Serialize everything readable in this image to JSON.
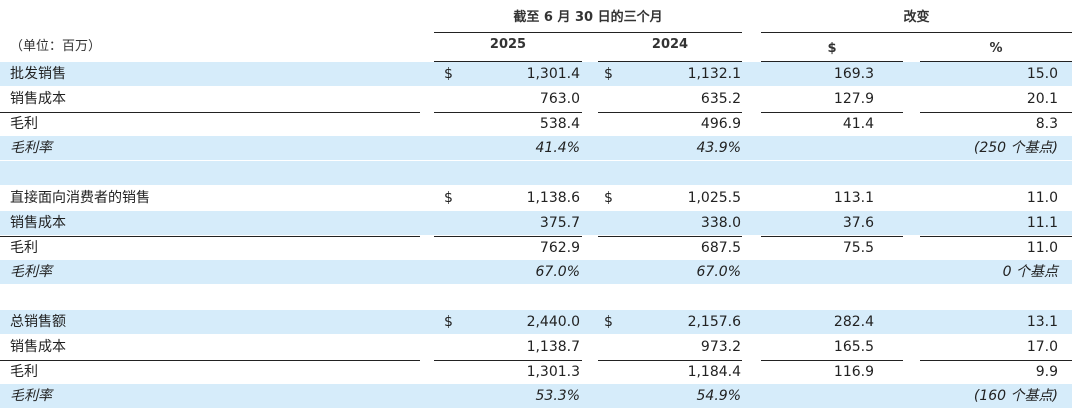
{
  "header": {
    "period": "截至 6 月 30 日的三个月",
    "change": "改变",
    "unit": "（单位：百万）",
    "col_2025": "2025",
    "col_2024": "2024",
    "col_dollar": "$",
    "col_percent": "%"
  },
  "rows": [
    {
      "label": "批发销售",
      "d1": "$",
      "v2025": "1,301.4",
      "d2": "$",
      "v2024": "1,132.1",
      "chg": "169.3",
      "pct": "15.0"
    },
    {
      "label": "销售成本",
      "d1": "",
      "v2025": "763.0",
      "d2": "",
      "v2024": "635.2",
      "chg": "127.9",
      "pct": "20.1"
    },
    {
      "label": "毛利",
      "d1": "",
      "v2025": "538.4",
      "d2": "",
      "v2024": "496.9",
      "chg": "41.4",
      "pct": "8.3"
    },
    {
      "label": "毛利率",
      "d1": "",
      "v2025": "41.4%",
      "d2": "",
      "v2024": "43.9%",
      "chg": "",
      "pct": "(250 个基点)"
    },
    {
      "label": "",
      "d1": "",
      "v2025": "",
      "d2": "",
      "v2024": "",
      "chg": "",
      "pct": ""
    },
    {
      "label": "直接面向消费者的销售",
      "d1": "$",
      "v2025": "1,138.6",
      "d2": "$",
      "v2024": "1,025.5",
      "chg": "113.1",
      "pct": "11.0"
    },
    {
      "label": "销售成本",
      "d1": "",
      "v2025": "375.7",
      "d2": "",
      "v2024": "338.0",
      "chg": "37.6",
      "pct": "11.1"
    },
    {
      "label": "毛利",
      "d1": "",
      "v2025": "762.9",
      "d2": "",
      "v2024": "687.5",
      "chg": "75.5",
      "pct": "11.0"
    },
    {
      "label": "毛利率",
      "d1": "",
      "v2025": "67.0%",
      "d2": "",
      "v2024": "67.0%",
      "chg": "",
      "pct": "0 个基点"
    },
    {
      "label": "",
      "d1": "",
      "v2025": "",
      "d2": "",
      "v2024": "",
      "chg": "",
      "pct": ""
    },
    {
      "label": "总销售额",
      "d1": "$",
      "v2025": "2,440.0",
      "d2": "$",
      "v2024": "2,157.6",
      "chg": "282.4",
      "pct": "13.1"
    },
    {
      "label": "销售成本",
      "d1": "",
      "v2025": "1,138.7",
      "d2": "",
      "v2024": "973.2",
      "chg": "165.5",
      "pct": "17.0"
    },
    {
      "label": "毛利",
      "d1": "",
      "v2025": "1,301.3",
      "d2": "",
      "v2024": "1,184.4",
      "chg": "116.9",
      "pct": "9.9"
    },
    {
      "label": "毛利率",
      "d1": "",
      "v2025": "53.3%",
      "d2": "",
      "v2024": "54.9%",
      "chg": "",
      "pct": "(160 个基点)"
    }
  ]
}
